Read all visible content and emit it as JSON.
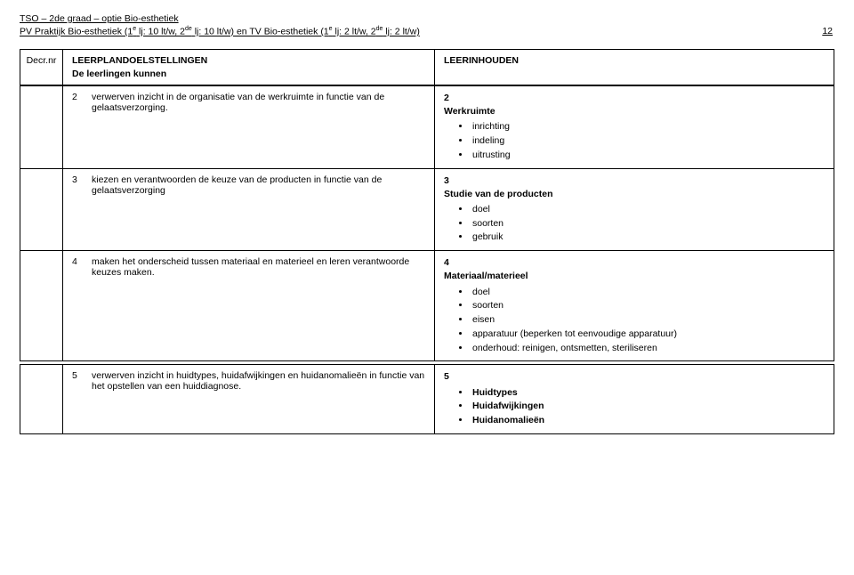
{
  "page": {
    "header_line1": "TSO – 2de graad – optie Bio-esthetiek",
    "header_line2_left_prefix": "PV Praktijk Bio-esthetiek (1",
    "header_line2_sup1": "e",
    "header_line2_mid1": " lj: 10 lt/w, 2",
    "header_line2_sup2": "de",
    "header_line2_mid2": " lj: 10 lt/w) en TV Bio-esthetiek (1",
    "header_line2_sup3": "e",
    "header_line2_mid3": " lj: 2 lt/w, 2",
    "header_line2_sup4": "de",
    "header_line2_end": " lj: 2 lt/w)",
    "page_number": "12"
  },
  "columns": {
    "decr": "Decr.nr",
    "leerplan_title": "LEERPLANDOELSTELLINGEN",
    "leerlingen": "De leerlingen kunnen",
    "leerinhouden": "LEERINHOUDEN"
  },
  "rows": {
    "r2": {
      "num": "2",
      "left": "verwerven inzicht in de organisatie van de werkruimte in functie van de gelaatsverzorging.",
      "right_num": "2",
      "right_title": "Werkruimte",
      "bullets": [
        "inrichting",
        "indeling",
        "uitrusting"
      ]
    },
    "r3": {
      "num": "3",
      "left": "kiezen en verantwoorden de keuze van de producten in functie van de gelaatsverzorging",
      "right_num": "3",
      "right_title": "Studie van de producten",
      "bullets": [
        "doel",
        "soorten",
        "gebruik"
      ]
    },
    "r4": {
      "num": "4",
      "left": "maken het onderscheid tussen materiaal en materieel  en leren verantwoorde keuzes maken.",
      "right_num": "4",
      "right_title": "Materiaal/materieel",
      "bullets": [
        "doel",
        "soorten",
        "eisen",
        "apparatuur (beperken tot eenvoudige apparatuur)",
        "onderhoud: reinigen, ontsmetten, steriliseren"
      ]
    },
    "r5": {
      "num": "5",
      "left": "verwerven inzicht in huidtypes, huidafwijkingen en huidanomalieën in functie van het opstellen van een huiddiagnose.",
      "right_num": "5",
      "bullets": [
        "Huidtypes",
        "Huidafwijkingen",
        "Huidanomalieën"
      ]
    }
  }
}
